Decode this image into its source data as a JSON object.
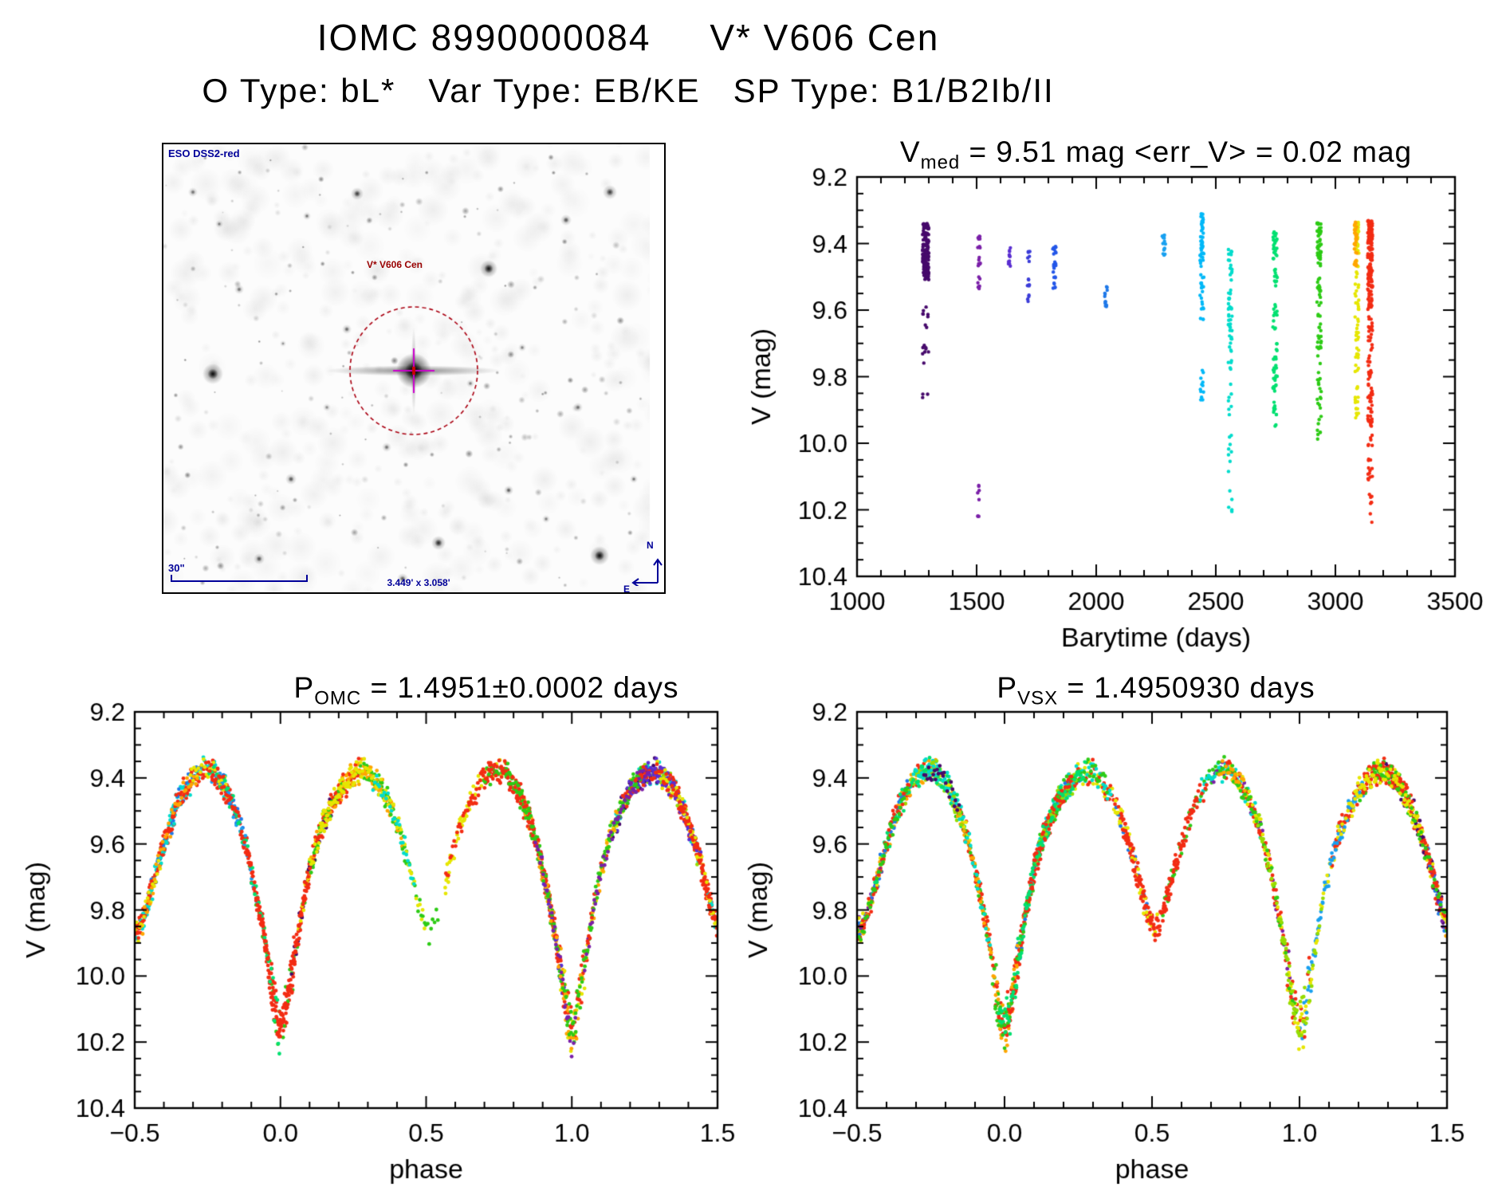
{
  "page": {
    "title": "IOMC 8990000084     V* V606 Cen",
    "subtitle": "O Type: bL*   Var Type: EB/KE   SP Type: B1/B2Ib/II"
  },
  "finder_chart": {
    "survey_label": "ESO DSS2-red",
    "target_label": "V* V606 Cen",
    "scale_label": "30\"",
    "size_label": "3.449' x 3.058'",
    "north_label": "N",
    "east_label": "E",
    "annotation_color": "#000099",
    "target_label_color": "#990000",
    "circle_color": "#AA0011",
    "crosshair_color": "#CC00CC",
    "target_xy": [
      314,
      284
    ],
    "circle_radius": 80,
    "stars": [
      [
        62,
        288,
        13,
        0.95
      ],
      [
        408,
        156,
        11,
        0.9
      ],
      [
        547,
        516,
        12,
        0.95
      ],
      [
        243,
        62,
        8,
        0.7
      ],
      [
        345,
        500,
        9,
        0.8
      ],
      [
        160,
        420,
        7,
        0.6
      ],
      [
        433,
        434,
        6,
        0.6
      ],
      [
        95,
        182,
        6,
        0.5
      ],
      [
        230,
        232,
        6,
        0.55
      ],
      [
        505,
        95,
        7,
        0.6
      ],
      [
        560,
        60,
        9,
        0.7
      ],
      [
        120,
        520,
        7,
        0.6
      ],
      [
        280,
        380,
        6,
        0.5
      ],
      [
        385,
        300,
        5,
        0.45
      ],
      [
        450,
        255,
        5,
        0.45
      ],
      [
        180,
        90,
        5,
        0.5
      ],
      [
        520,
        330,
        6,
        0.5
      ],
      [
        300,
        545,
        7,
        0.6
      ],
      [
        70,
        100,
        5,
        0.45
      ],
      [
        590,
        420,
        5,
        0.5
      ],
      [
        37,
        60,
        6,
        0.5
      ],
      [
        205,
        330,
        5,
        0.4
      ],
      [
        480,
        470,
        5,
        0.45
      ],
      [
        150,
        250,
        4,
        0.4
      ]
    ]
  },
  "palette": {
    "colors": [
      "#46096B",
      "#7A1FA8",
      "#5A2ED1",
      "#2E4BD8",
      "#1E78E8",
      "#18A0F0",
      "#00DCCC",
      "#00E070",
      "#2DCB15",
      "#96DC00",
      "#E6E600",
      "#FFA500",
      "#F32C13"
    ],
    "weights": [
      0.05,
      0.02,
      0.015,
      0.015,
      0.02,
      0.03,
      0.05,
      0.05,
      0.13,
      0.07,
      0.11,
      0.1,
      0.33
    ]
  },
  "chart_data": [
    {
      "id": "barytime-lightcurve",
      "type": "scatter",
      "title": {
        "base": "V",
        "sub": "med",
        "rest": " = 9.51 mag <err_V> = 0.02 mag"
      },
      "xlabel": "Barytime (days)",
      "ylabel": "V (mag)",
      "xlim": [
        1000,
        3500
      ],
      "ylim": [
        10.4,
        9.2
      ],
      "xticks": [
        "1000",
        "1500",
        "2000",
        "2500",
        "3000",
        "3500"
      ],
      "yticks": [
        "9.2",
        "9.4",
        "9.6",
        "9.8",
        "10.0",
        "10.2",
        "10.4"
      ],
      "x_minor_per_major": 4,
      "y_minor_per_major": 3,
      "seed": 3,
      "clusters": [
        {
          "t": 1287,
          "dt": 13,
          "color": "#46096B",
          "segments": [
            [
              9.34,
              9.51,
              120
            ],
            [
              9.42,
              9.5,
              50
            ],
            [
              9.59,
              9.67,
              8
            ],
            [
              9.7,
              9.79,
              8
            ],
            [
              9.85,
              9.88,
              3
            ]
          ]
        },
        {
          "t": 1510,
          "dt": 6,
          "color": "#7A1FA8",
          "segments": [
            [
              9.37,
              9.42,
              8
            ],
            [
              9.44,
              9.47,
              6
            ],
            [
              9.5,
              9.54,
              7
            ],
            [
              10.12,
              10.17,
              5
            ],
            [
              10.2,
              10.23,
              3
            ]
          ]
        },
        {
          "t": 1637,
          "dt": 5,
          "color": "#5A2ED1",
          "segments": [
            [
              9.41,
              9.47,
              12
            ]
          ]
        },
        {
          "t": 1718,
          "dt": 6,
          "color": "#3A3BD8",
          "segments": [
            [
              9.42,
              9.46,
              6
            ],
            [
              9.49,
              9.53,
              6
            ],
            [
              9.55,
              9.58,
              4
            ]
          ]
        },
        {
          "t": 1825,
          "dt": 7,
          "color": "#2356E8",
          "segments": [
            [
              9.4,
              9.49,
              16
            ],
            [
              9.5,
              9.55,
              8
            ]
          ]
        },
        {
          "t": 2040,
          "dt": 6,
          "color": "#1E78E8",
          "segments": [
            [
              9.52,
              9.59,
              12
            ]
          ]
        },
        {
          "t": 2283,
          "dt": 7,
          "color": "#18A0F0",
          "segments": [
            [
              9.37,
              9.44,
              14
            ]
          ]
        },
        {
          "t": 2442,
          "dt": 8,
          "color": "#00B8F8",
          "segments": [
            [
              9.31,
              9.47,
              40
            ],
            [
              9.49,
              9.63,
              22
            ],
            [
              9.78,
              9.89,
              12
            ]
          ]
        },
        {
          "t": 2560,
          "dt": 8,
          "color": "#00DCCC",
          "segments": [
            [
              9.4,
              9.51,
              16
            ],
            [
              9.52,
              9.92,
              46
            ],
            [
              9.96,
              10.1,
              8
            ],
            [
              10.12,
              10.22,
              6
            ]
          ]
        },
        {
          "t": 2748,
          "dt": 9,
          "color": "#00E070",
          "segments": [
            [
              9.35,
              9.45,
              22
            ],
            [
              9.47,
              9.53,
              10
            ],
            [
              9.57,
              9.85,
              40
            ],
            [
              9.86,
              9.96,
              10
            ]
          ]
        },
        {
          "t": 2932,
          "dt": 9,
          "color": "#2DCB15",
          "segments": [
            [
              9.33,
              9.47,
              45
            ],
            [
              9.5,
              9.62,
              20
            ],
            [
              9.64,
              9.9,
              30
            ],
            [
              9.91,
              9.99,
              8
            ]
          ]
        },
        {
          "t": 3090,
          "dt": 8,
          "color": "#E6E600",
          "segments": [
            [
              9.33,
              9.43,
              35
            ],
            [
              9.45,
              9.6,
              20
            ],
            [
              9.62,
              9.82,
              25
            ],
            [
              9.83,
              9.93,
              15
            ]
          ]
        },
        {
          "t": 3085,
          "dt": 6,
          "color": "#FFA500",
          "segments": [
            [
              9.33,
              9.47,
              30
            ]
          ]
        },
        {
          "t": 3145,
          "dt": 10,
          "color": "#F32C13",
          "segments": [
            [
              9.33,
              9.45,
              90
            ],
            [
              9.46,
              9.6,
              60
            ],
            [
              9.62,
              9.95,
              70
            ],
            [
              9.97,
              10.13,
              18
            ],
            [
              10.15,
              10.24,
              8
            ]
          ]
        }
      ]
    },
    {
      "id": "phase-omc",
      "type": "scatter",
      "title": {
        "base": "P",
        "sub": "OMC",
        "rest": " = 1.4951±0.0002 days"
      },
      "xlabel": "phase",
      "ylabel": "V (mag)",
      "xlim": [
        -0.5,
        1.5
      ],
      "ylim": [
        10.4,
        9.2
      ],
      "xticks": [
        "-0.5",
        "0.0",
        "0.5",
        "1.0",
        "1.5"
      ],
      "yticks": [
        "9.2",
        "9.4",
        "9.6",
        "9.8",
        "10.0",
        "10.2",
        "10.4"
      ],
      "x_minor_per_major": 4,
      "y_minor_per_major": 3,
      "seed": 11,
      "n_points": 2600,
      "noise": 0.022,
      "deep_noise": 0.045,
      "curve": [
        [
          0.0,
          10.17
        ],
        [
          0.015,
          10.12
        ],
        [
          0.03,
          10.03
        ],
        [
          0.05,
          9.93
        ],
        [
          0.07,
          9.82
        ],
        [
          0.1,
          9.68
        ],
        [
          0.13,
          9.58
        ],
        [
          0.17,
          9.49
        ],
        [
          0.21,
          9.43
        ],
        [
          0.25,
          9.39
        ],
        [
          0.29,
          9.375
        ],
        [
          0.33,
          9.41
        ],
        [
          0.37,
          9.47
        ],
        [
          0.41,
          9.56
        ],
        [
          0.45,
          9.69
        ],
        [
          0.48,
          9.8
        ],
        [
          0.51,
          9.87
        ],
        [
          0.54,
          9.8
        ],
        [
          0.57,
          9.7
        ],
        [
          0.61,
          9.57
        ],
        [
          0.65,
          9.47
        ],
        [
          0.69,
          9.41
        ],
        [
          0.73,
          9.375
        ],
        [
          0.77,
          9.38
        ],
        [
          0.81,
          9.43
        ],
        [
          0.85,
          9.51
        ],
        [
          0.88,
          9.6
        ],
        [
          0.91,
          9.72
        ],
        [
          0.94,
          9.86
        ],
        [
          0.96,
          9.97
        ],
        [
          0.98,
          10.09
        ],
        [
          1.0,
          10.17
        ]
      ]
    },
    {
      "id": "phase-vsx",
      "type": "scatter",
      "title": {
        "base": "P",
        "sub": "VSX",
        "rest": " = 1.4950930 days"
      },
      "xlabel": "phase",
      "ylabel": "V (mag)",
      "xlim": [
        -0.5,
        1.5
      ],
      "ylim": [
        10.4,
        9.2
      ],
      "xticks": [
        "-0.5",
        "0.0",
        "0.5",
        "1.0",
        "1.5"
      ],
      "yticks": [
        "9.2",
        "9.4",
        "9.6",
        "9.8",
        "10.0",
        "10.2",
        "10.4"
      ],
      "x_minor_per_major": 4,
      "y_minor_per_major": 3,
      "seed": 29,
      "n_points": 2600,
      "noise": 0.022,
      "deep_noise": 0.045,
      "curve": [
        [
          0.0,
          10.17
        ],
        [
          0.015,
          10.12
        ],
        [
          0.03,
          10.03
        ],
        [
          0.05,
          9.93
        ],
        [
          0.07,
          9.82
        ],
        [
          0.1,
          9.68
        ],
        [
          0.13,
          9.58
        ],
        [
          0.17,
          9.49
        ],
        [
          0.21,
          9.43
        ],
        [
          0.25,
          9.39
        ],
        [
          0.29,
          9.375
        ],
        [
          0.33,
          9.41
        ],
        [
          0.37,
          9.47
        ],
        [
          0.41,
          9.56
        ],
        [
          0.45,
          9.69
        ],
        [
          0.48,
          9.8
        ],
        [
          0.51,
          9.87
        ],
        [
          0.54,
          9.8
        ],
        [
          0.57,
          9.7
        ],
        [
          0.61,
          9.57
        ],
        [
          0.65,
          9.47
        ],
        [
          0.69,
          9.41
        ],
        [
          0.73,
          9.375
        ],
        [
          0.77,
          9.38
        ],
        [
          0.81,
          9.43
        ],
        [
          0.85,
          9.51
        ],
        [
          0.88,
          9.6
        ],
        [
          0.91,
          9.72
        ],
        [
          0.94,
          9.86
        ],
        [
          0.96,
          9.97
        ],
        [
          0.98,
          10.09
        ],
        [
          1.0,
          10.17
        ]
      ]
    }
  ]
}
